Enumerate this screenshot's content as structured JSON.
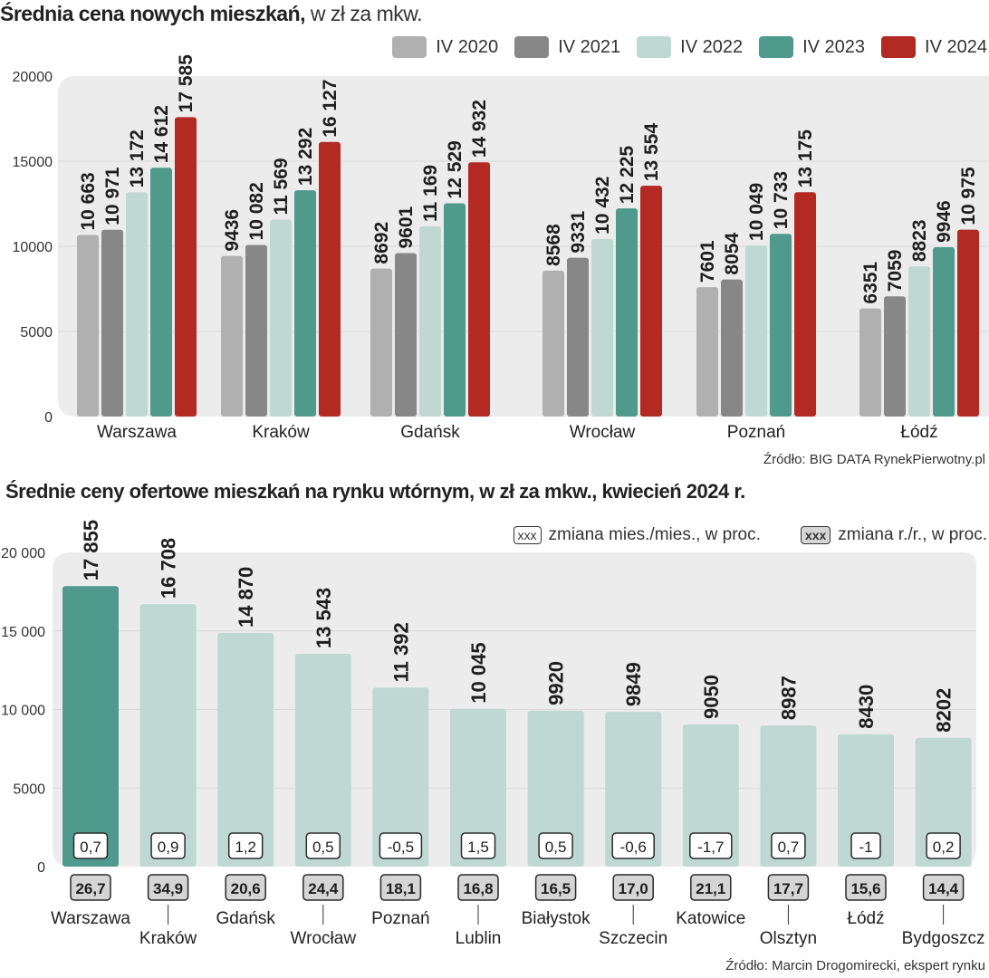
{
  "chart_data": [
    {
      "type": "bar",
      "title": "Średnia cena nowych mieszkań,",
      "subtitle": "w zł za mkw.",
      "xlabel": "",
      "ylabel": "",
      "ylim": [
        0,
        20000
      ],
      "yticks": [
        0,
        5000,
        10000,
        15000,
        20000
      ],
      "ytick_labels": [
        "0",
        "5000",
        "10000",
        "15000",
        "20000"
      ],
      "grid": true,
      "legend_position": "top-right",
      "categories": [
        "Warszawa",
        "Kraków",
        "Gdańsk",
        "Wrocław",
        "Poznań",
        "Łódź"
      ],
      "series": [
        {
          "name": "IV 2020",
          "color": "#b0b0b0",
          "values": [
            10663,
            9436,
            8692,
            8568,
            7601,
            6351
          ],
          "labels": [
            "10 663",
            "9436",
            "8692",
            "8568",
            "7601",
            "6351"
          ]
        },
        {
          "name": "IV 2021",
          "color": "#878787",
          "values": [
            10971,
            10082,
            9601,
            9331,
            8054,
            7059
          ],
          "labels": [
            "10 971",
            "10 082",
            "9601",
            "9331",
            "8054",
            "7059"
          ]
        },
        {
          "name": "IV 2022",
          "color": "#bfd9d2",
          "values": [
            13172,
            11569,
            11169,
            10432,
            10049,
            8823
          ],
          "labels": [
            "13 172",
            "11 569",
            "11 169",
            "10 432",
            "10 049",
            "8823"
          ]
        },
        {
          "name": "IV 2023",
          "color": "#4f9a8d",
          "values": [
            14612,
            13292,
            12529,
            12225,
            10733,
            9946
          ],
          "labels": [
            "14 612",
            "13 292",
            "12 529",
            "12 225",
            "10 733",
            "9946"
          ]
        },
        {
          "name": "IV 2024",
          "color": "#b22a22",
          "values": [
            17585,
            16127,
            14932,
            13554,
            13175,
            10975
          ],
          "labels": [
            "17 585",
            "16 127",
            "14 932",
            "13 554",
            "13 175",
            "10 975"
          ]
        }
      ],
      "source": "Źródło: BIG DATA RynekPierwotny.pl"
    },
    {
      "type": "bar",
      "title": "Średnie ceny ofertowe mieszkań na rynku wtórnym, w zł za mkw.,  kwiecień 2024 r.",
      "xlabel": "",
      "ylabel": "",
      "ylim": [
        0,
        20000
      ],
      "yticks": [
        0,
        5000,
        10000,
        15000,
        20000
      ],
      "ytick_labels": [
        "0",
        "5000",
        "10 000",
        "15 000",
        "20 000"
      ],
      "grid": true,
      "legend_position": "top-right",
      "legend": [
        {
          "box": "xxx",
          "label": "zmiana mies./mies., w proc.",
          "style": "outline"
        },
        {
          "box": "xxx",
          "label": "zmiana r./r., w proc.",
          "style": "filled"
        }
      ],
      "categories": [
        "Warszawa",
        "Kraków",
        "Gdańsk",
        "Wrocław",
        "Poznań",
        "Lublin",
        "Białystok",
        "Szczecin",
        "Katowice",
        "Olsztyn",
        "Łódź",
        "Bydgoszcz"
      ],
      "values": [
        17855,
        16708,
        14870,
        13543,
        11392,
        10045,
        9920,
        9849,
        9050,
        8987,
        8430,
        8202
      ],
      "value_labels": [
        "17 855",
        "16 708",
        "14 870",
        "13 543",
        "11 392",
        "10 045",
        "9920",
        "9849",
        "9050",
        "8987",
        "8430",
        "8202"
      ],
      "mom_change_pct": [
        "0,7",
        "0,9",
        "1,2",
        "0,5",
        "-0,5",
        "1,5",
        "0,5",
        "-0,6",
        "-1,7",
        "0,7",
        "-1",
        "0,2"
      ],
      "yoy_change_pct": [
        "26,7",
        "34,9",
        "20,6",
        "24,4",
        "18,1",
        "16,8",
        "16,5",
        "17,0",
        "21,1",
        "17,7",
        "15,6",
        "14,4"
      ],
      "highlight_color": "#4f9a8d",
      "bar_color": "#bfd9d2",
      "source": "Źródło: Marcin Drogomirecki, ekspert rynku"
    }
  ]
}
